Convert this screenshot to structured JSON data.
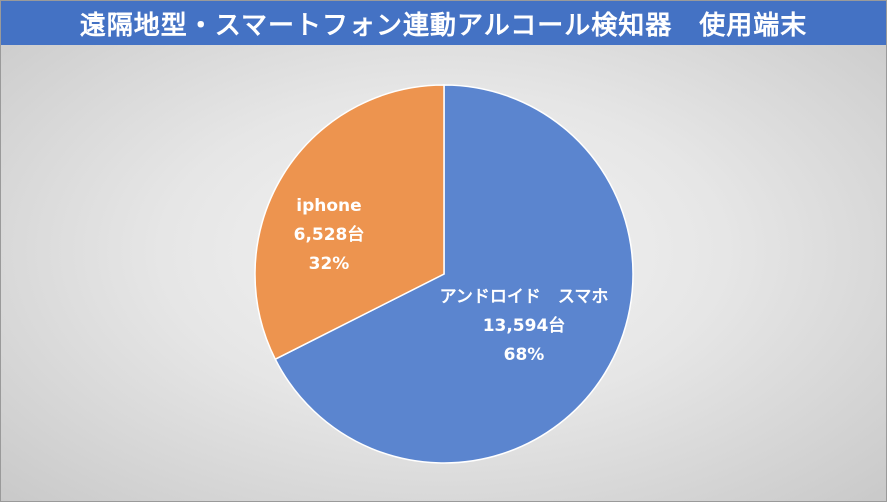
{
  "chart_data": {
    "type": "pie",
    "title": "遠隔地型・スマートフォン連動アルコール検知器　使用端末",
    "slices": [
      {
        "name": "アンドロイド　スマホ",
        "value": 13594,
        "value_label": "13,594台",
        "percent": 68,
        "percent_label": "68%",
        "color": "#5b85cf"
      },
      {
        "name": "iphone",
        "value": 6528,
        "value_label": "6,528台",
        "percent": 32,
        "percent_label": "32%",
        "color": "#ed944f"
      }
    ],
    "legend": "none"
  },
  "colors": {
    "title_bar": "#4472c4",
    "label_text": "#ffffff",
    "slice_border": "#ffffff"
  }
}
